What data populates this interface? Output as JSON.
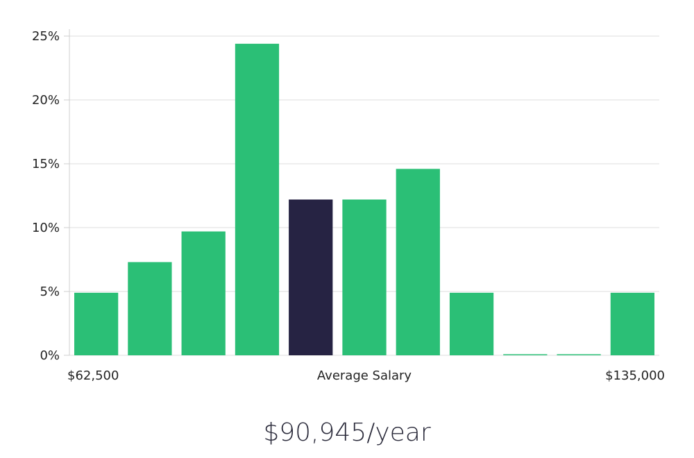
{
  "chart_data": {
    "type": "bar",
    "title": "",
    "xlabel": "Average Salary",
    "ylabel": "",
    "ylim": [
      0,
      25
    ],
    "y_ticks": [
      0,
      5,
      10,
      15,
      20,
      25
    ],
    "y_tick_labels": [
      "0%",
      "5%",
      "10%",
      "15%",
      "20%",
      "25%"
    ],
    "x_range_labels": {
      "min": "$62,500",
      "max": "$135,000"
    },
    "grid": true,
    "highlight_index": 4,
    "values": [
      4.9,
      7.3,
      9.7,
      24.4,
      12.2,
      12.2,
      14.6,
      4.9,
      0,
      0,
      4.9
    ],
    "units": "percent of salaries"
  },
  "colors": {
    "bar": "#2bbf76",
    "highlight_bar": "#262343",
    "grid": "#dcdcdc",
    "axis": "#cfcfcf",
    "text": "#222222"
  },
  "summary": {
    "average_salary": "$90,945/year"
  }
}
